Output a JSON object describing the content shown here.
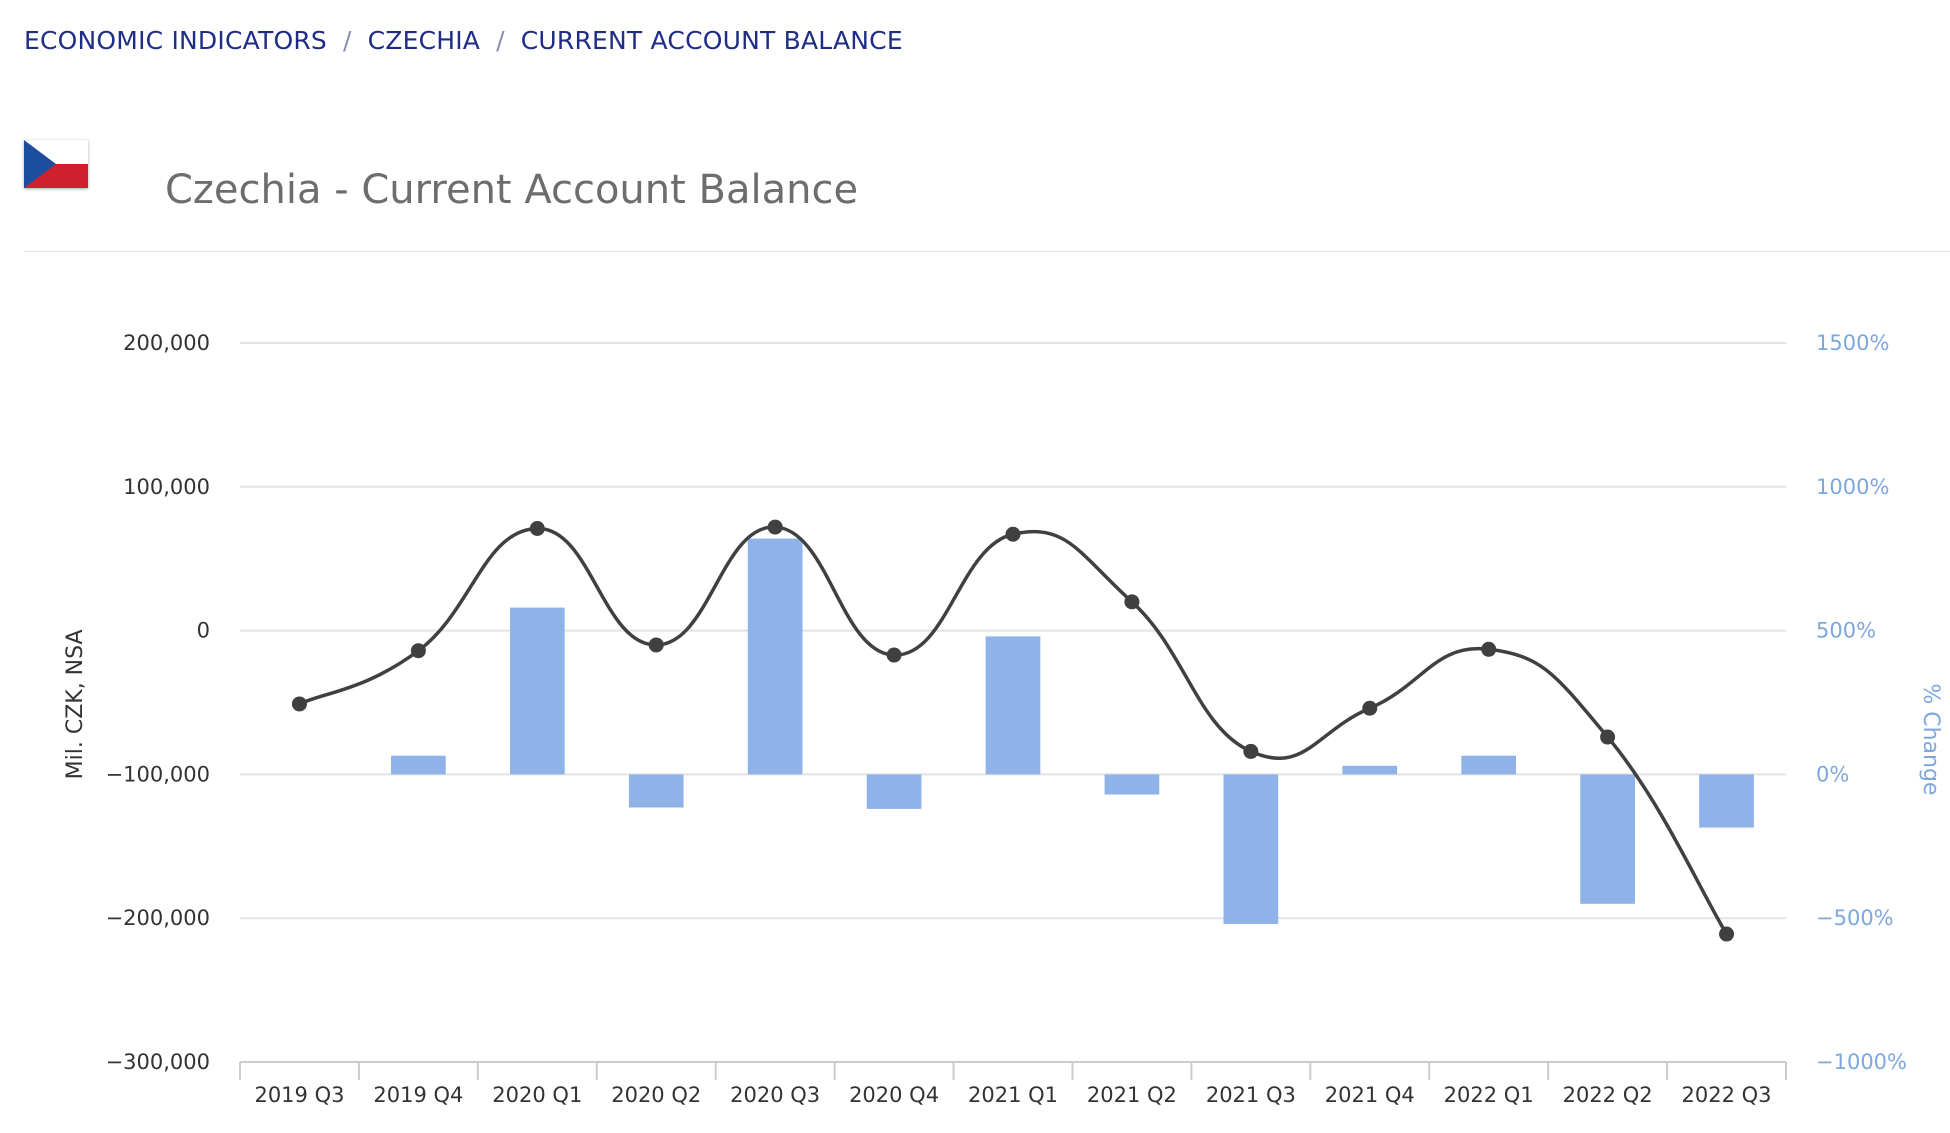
{
  "breadcrumb": {
    "items": [
      "ECONOMIC INDICATORS",
      "CZECHIA",
      "CURRENT ACCOUNT BALANCE"
    ],
    "separator": "/"
  },
  "page": {
    "title": "Czechia - Current Account Balance",
    "flag_icon": "czech-flag-icon"
  },
  "colors": {
    "breadcrumb": "#1f2d86",
    "bars": "#8fb3e8",
    "line": "#404040",
    "right_axis": "#7ea7dc"
  },
  "chart_data": {
    "type": "bar",
    "categories": [
      "2019 Q3",
      "2019 Q4",
      "2020 Q1",
      "2020 Q2",
      "2020 Q3",
      "2020 Q4",
      "2021 Q1",
      "2021 Q2",
      "2021 Q3",
      "2021 Q4",
      "2022 Q1",
      "2022 Q2",
      "2022 Q3"
    ],
    "series": [
      {
        "type": "bar",
        "axis": "left",
        "values": [
          -51000,
          -14000,
          71000,
          -10000,
          72000,
          -17000,
          67000,
          20000,
          -84000,
          -54000,
          -13000,
          -74000,
          -211000
        ]
      },
      {
        "type": "line",
        "axis": "right",
        "values": [
          null,
          65,
          580,
          -115,
          820,
          -120,
          480,
          -70,
          -520,
          30,
          65,
          -450,
          -185
        ]
      }
    ],
    "ylabel": "Mil. CZK, NSA",
    "ylabel_right": "% Change",
    "ylim": [
      -300000,
      200000
    ],
    "ylim_right": [
      -1000,
      1500
    ],
    "yticks": [
      "200,000",
      "100,000",
      "0",
      "−100,000",
      "−200,000",
      "−300,000"
    ],
    "yticks_right": [
      "1500%",
      "1000%",
      "500%",
      "0%",
      "−500%",
      "−1000%"
    ],
    "grid": true,
    "legend": "none"
  }
}
